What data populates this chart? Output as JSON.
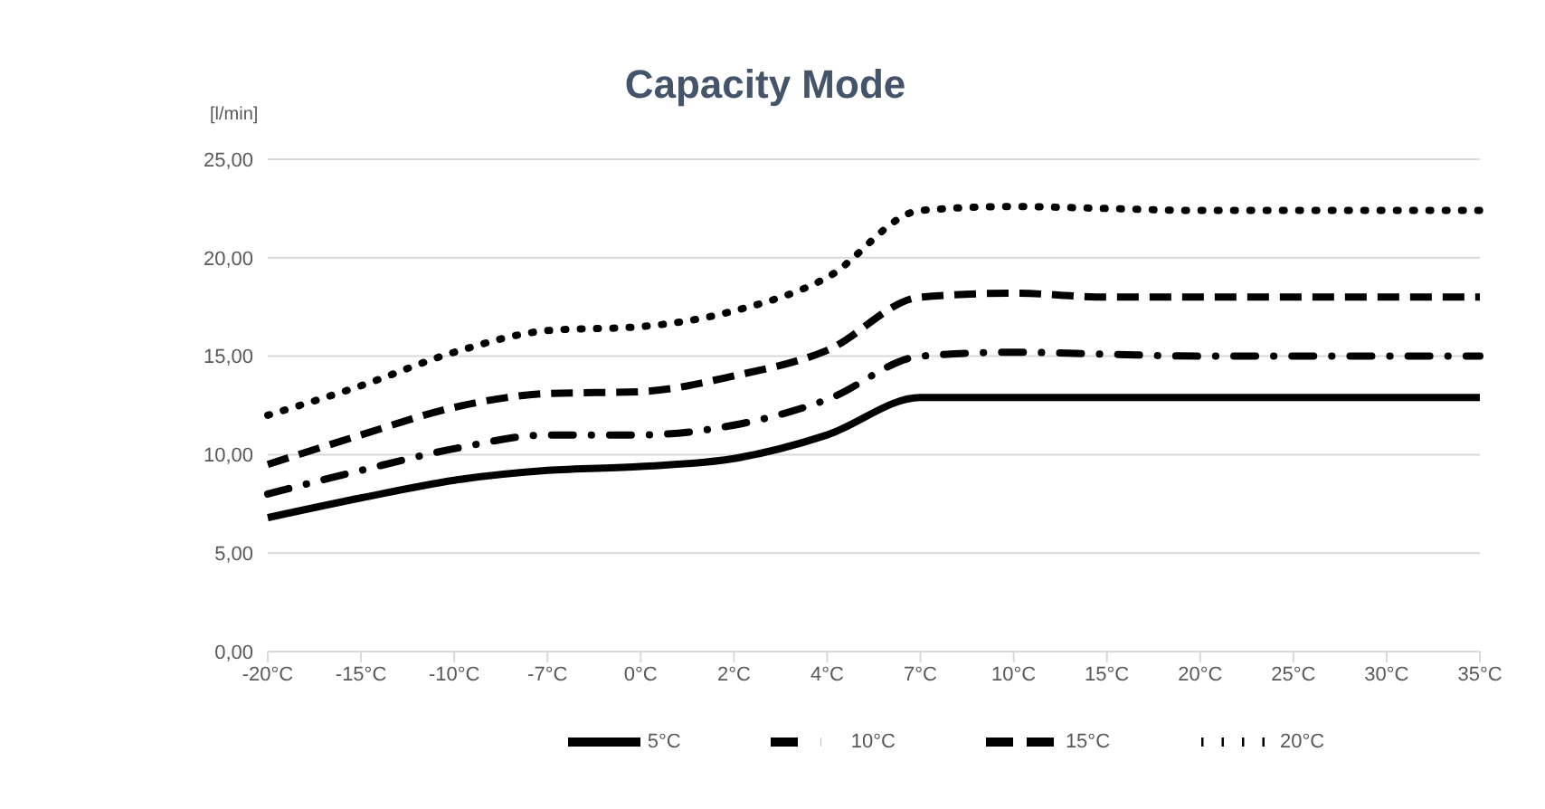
{
  "chart_data": {
    "type": "line",
    "title": "Capacity Mode",
    "ylabel": "[l/min]",
    "categories": [
      "-20°C",
      "-15°C",
      "-10°C",
      "-7°C",
      "0°C",
      "2°C",
      "4°C",
      "7°C",
      "10°C",
      "15°C",
      "20°C",
      "25°C",
      "30°C",
      "35°C"
    ],
    "series": [
      {
        "name": "5°C",
        "color": "#000000",
        "line_style": "solid",
        "values": [
          6.8,
          7.8,
          8.7,
          9.2,
          9.4,
          9.8,
          11.0,
          12.9,
          12.9,
          12.9,
          12.9,
          12.9,
          12.9,
          12.9
        ]
      },
      {
        "name": "10°C",
        "color": "#000000",
        "line_style": "dashdot",
        "values": [
          8.0,
          9.2,
          10.3,
          11.0,
          11.0,
          11.5,
          12.8,
          15.0,
          15.2,
          15.1,
          15.0,
          15.0,
          15.0,
          15.0
        ]
      },
      {
        "name": "15°C",
        "color": "#000000",
        "line_style": "dashed",
        "values": [
          9.5,
          11.0,
          12.4,
          13.1,
          13.2,
          14.0,
          15.3,
          18.0,
          18.2,
          18.0,
          18.0,
          18.0,
          18.0,
          18.0
        ]
      },
      {
        "name": "20°C",
        "color": "#000000",
        "line_style": "dotted",
        "values": [
          12.0,
          13.5,
          15.2,
          16.3,
          16.5,
          17.3,
          19.0,
          22.4,
          22.6,
          22.5,
          22.4,
          22.4,
          22.4,
          22.4
        ]
      }
    ],
    "ylim": [
      0,
      25
    ],
    "yticks": [
      {
        "value": 0,
        "label": "0,00"
      },
      {
        "value": 5,
        "label": "5,00"
      },
      {
        "value": 10,
        "label": "10,00"
      },
      {
        "value": 15,
        "label": "15,00"
      },
      {
        "value": 20,
        "label": "20,00"
      },
      {
        "value": 25,
        "label": "25,00"
      }
    ],
    "grid": "y",
    "legend": "bottom",
    "marker": "none"
  }
}
